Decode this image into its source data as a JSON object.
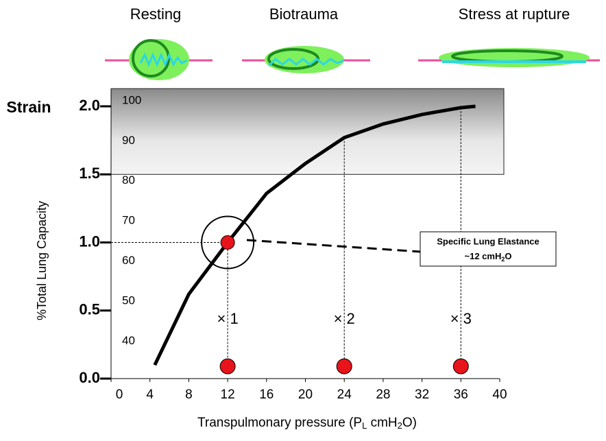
{
  "chart_data": {
    "type": "line",
    "stages": [
      "Resting",
      "Biotrauma",
      "Stress at rupture"
    ],
    "y_title": "Strain",
    "y2_title": "%Total Lung Capacity",
    "x_title_parts": [
      "Transpulmonary pressure (P",
      "L",
      " cmH",
      "2",
      "O)"
    ],
    "xlim": [
      0,
      40
    ],
    "xticks": [
      0,
      4,
      8,
      12,
      16,
      20,
      24,
      28,
      32,
      36,
      40
    ],
    "ylim": [
      0,
      2
    ],
    "yticks": [
      {
        "value": 0,
        "label": "0.0"
      },
      {
        "value": 0.5,
        "label": "0.5"
      },
      {
        "value": 1,
        "label": "1.0"
      },
      {
        "value": 1.5,
        "label": "1.5"
      },
      {
        "value": 2,
        "label": "2.0"
      }
    ],
    "y2lim": [
      32,
      100
    ],
    "y2ticks": [
      40,
      50,
      60,
      70,
      80,
      90,
      100
    ],
    "shaded_band": [
      1.5,
      2.13
    ],
    "series": [
      {
        "color": "#000000",
        "x": [
          4.5,
          8,
          12,
          16,
          20,
          24,
          28,
          32,
          36,
          37.5
        ],
        "values": [
          0.1,
          0.62,
          1.0,
          1.36,
          1.58,
          1.77,
          1.87,
          1.94,
          1.99,
          2.0
        ]
      }
    ],
    "marker": {
      "x": 12,
      "value": 1.0,
      "color": "#e8141b"
    },
    "multiples": {
      "x": [
        12,
        24,
        36
      ],
      "values": [
        0.09,
        0.09,
        0.09
      ],
      "curve_values": [
        1.0,
        1.77,
        1.99
      ],
      "labels": [
        "× 1",
        "× 2",
        "× 3"
      ]
    },
    "callout": {
      "line1": "Specific Lung Elastance",
      "line2_parts": [
        "~12 cmH",
        "2",
        "O"
      ]
    }
  }
}
